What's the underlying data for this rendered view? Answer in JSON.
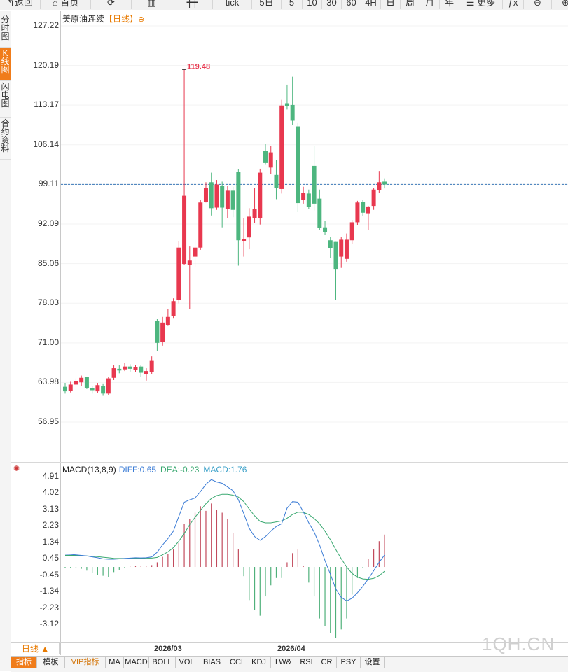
{
  "toolbar": {
    "items": [
      {
        "label": "↰返回",
        "name": "back-button"
      },
      {
        "label": "⌂ 首页",
        "name": "home-button"
      },
      {
        "label": "⟳",
        "name": "refresh-button"
      },
      {
        "label": "▥",
        "name": "bar-chart-button"
      },
      {
        "label": "┿┿",
        "name": "candle-style-button"
      },
      {
        "label": "tick",
        "name": "tick-button"
      },
      {
        "label": "5日",
        "name": "period-5day-button"
      },
      {
        "label": "5",
        "name": "period-5min-button"
      },
      {
        "label": "10",
        "name": "period-10min-button"
      },
      {
        "label": "30",
        "name": "period-30min-button"
      },
      {
        "label": "60",
        "name": "period-60min-button"
      },
      {
        "label": "4H",
        "name": "period-4h-button"
      },
      {
        "label": "日",
        "name": "period-day-button"
      },
      {
        "label": "周",
        "name": "period-week-button"
      },
      {
        "label": "月",
        "name": "period-month-button"
      },
      {
        "label": "年",
        "name": "period-year-button"
      },
      {
        "label": "☰ 更多",
        "name": "more-button"
      },
      {
        "label": "ƒx",
        "name": "formula-button"
      },
      {
        "label": "⊖",
        "name": "zoom-out-button"
      },
      {
        "label": "⊕",
        "name": "zoom-in-button"
      }
    ]
  },
  "side_tabs": [
    {
      "label": "分时图",
      "active": false
    },
    {
      "label": "K线图",
      "active": true
    },
    {
      "label": "闪电图",
      "active": false
    },
    {
      "label": "合约资料",
      "active": false
    }
  ],
  "header": {
    "instrument": "美原油连续",
    "period": "【日线】",
    "settings_icon": "⊕"
  },
  "price_axis": [
    "127.22",
    "120.19",
    "113.17",
    "106.14",
    "99.11",
    "92.09",
    "85.06",
    "78.03",
    "71.00",
    "63.98",
    "56.95"
  ],
  "macd": {
    "title": "MACD(13,8,9)",
    "diff": "DIFF:0.65",
    "dea": "DEA:-0.23",
    "macd": "MACD:1.76",
    "axis": [
      "4.91",
      "4.02",
      "3.13",
      "2.23",
      "1.34",
      "0.45",
      "-0.45",
      "-1.34",
      "-2.23",
      "-3.12"
    ]
  },
  "date_axis": [
    "2026/03",
    "2026/04"
  ],
  "period_button": "日线 ▲",
  "watermark": "1QH.CN",
  "bottom_tabs": [
    {
      "label": "指标",
      "active": true
    },
    {
      "label": "模板"
    },
    {
      "label": "VIP指标",
      "vip": true
    },
    {
      "label": "MA"
    },
    {
      "label": "MACD"
    },
    {
      "label": "BOLL"
    },
    {
      "label": "VOL"
    },
    {
      "label": "BIAS"
    },
    {
      "label": "CCI"
    },
    {
      "label": "KDJ"
    },
    {
      "label": "LW&"
    },
    {
      "label": "RSI"
    },
    {
      "label": "CR"
    },
    {
      "label": "PSY"
    },
    {
      "label": "设置"
    }
  ],
  "colors": {
    "up": "#e8384f",
    "down": "#4db67f",
    "diff": "#3a7bd5",
    "dea": "#39a870",
    "accent": "#f07c1a"
  },
  "chart_data": {
    "type": "candlestick",
    "title": "美原油连续【日线】",
    "y_range": [
      56.95,
      127.22
    ],
    "high_marker": "119.48",
    "current_price": 99.11,
    "candles": [
      [
        63.2,
        62.4,
        63.9,
        62.0
      ],
      [
        62.5,
        63.6,
        64.1,
        62.2
      ],
      [
        63.6,
        64.2,
        64.7,
        63.5
      ],
      [
        64.0,
        64.8,
        65.2,
        63.3
      ],
      [
        64.9,
        63.0,
        65.0,
        62.8
      ],
      [
        63.0,
        62.6,
        63.4,
        62.0
      ],
      [
        62.4,
        63.5,
        63.9,
        62.1
      ],
      [
        63.4,
        62.0,
        63.8,
        61.6
      ],
      [
        62.0,
        64.7,
        65.0,
        61.7
      ],
      [
        64.8,
        66.5,
        67.0,
        64.4
      ],
      [
        66.4,
        66.1,
        67.0,
        65.6
      ],
      [
        66.3,
        66.8,
        67.4,
        66.0
      ],
      [
        66.8,
        66.4,
        67.2,
        65.9
      ],
      [
        66.2,
        66.7,
        67.1,
        65.8
      ],
      [
        66.8,
        65.7,
        67.0,
        65.0
      ],
      [
        65.5,
        66.0,
        66.5,
        64.3
      ],
      [
        65.8,
        67.8,
        68.6,
        65.4
      ],
      [
        74.9,
        71.0,
        75.2,
        69.5
      ],
      [
        71.2,
        74.6,
        75.6,
        70.5
      ],
      [
        74.2,
        75.6,
        77.0,
        74.0
      ],
      [
        75.8,
        78.4,
        78.9,
        75.3
      ],
      [
        78.6,
        87.9,
        89.0,
        78.0
      ],
      [
        85.0,
        97.1,
        119.48,
        84.8
      ],
      [
        84.8,
        85.6,
        88.1,
        77.0
      ],
      [
        86.3,
        87.9,
        89.3,
        84.5
      ],
      [
        87.9,
        95.9,
        96.4,
        87.5
      ],
      [
        96.0,
        98.5,
        99.5,
        95.9
      ],
      [
        99.5,
        94.9,
        101.2,
        93.6
      ],
      [
        95.0,
        99.1,
        99.9,
        94.6
      ],
      [
        98.9,
        95.0,
        99.6,
        91.5
      ],
      [
        94.8,
        98.0,
        98.9,
        93.2
      ],
      [
        98.0,
        94.6,
        98.7,
        93.3
      ],
      [
        101.3,
        89.2,
        101.9,
        84.7
      ],
      [
        89.1,
        89.4,
        93.1,
        86.3
      ],
      [
        89.7,
        93.4,
        94.9,
        87.6
      ],
      [
        93.1,
        94.7,
        98.5,
        92.3
      ],
      [
        93.1,
        101.2,
        101.9,
        92.0
      ],
      [
        105.1,
        102.9,
        106.3,
        102.7
      ],
      [
        102.1,
        104.8,
        105.9,
        100.9
      ],
      [
        100.8,
        98.5,
        103.5,
        96.5
      ],
      [
        98.3,
        113.1,
        114.1,
        97.5
      ],
      [
        113.5,
        113.0,
        116.8,
        112.4
      ],
      [
        113.2,
        110.4,
        118.2,
        109.7
      ],
      [
        109.4,
        95.8,
        110.1,
        94.2
      ],
      [
        96.4,
        97.6,
        98.7,
        95.7
      ],
      [
        97.5,
        95.1,
        98.2,
        94.7
      ],
      [
        102.4,
        95.7,
        106.0,
        94.5
      ],
      [
        96.6,
        91.4,
        98.2,
        91.0
      ],
      [
        91.5,
        90.6,
        92.6,
        90.1
      ],
      [
        89.2,
        87.8,
        89.8,
        86.1
      ],
      [
        88.9,
        84.0,
        88.9,
        78.6
      ],
      [
        86.3,
        89.3,
        89.8,
        84.3
      ],
      [
        85.9,
        89.3,
        90.4,
        85.4
      ],
      [
        89.2,
        92.4,
        92.8,
        88.6
      ],
      [
        92.4,
        95.9,
        96.2,
        91.9
      ],
      [
        96.0,
        94.1,
        96.4,
        93.5
      ],
      [
        94.0,
        95.2,
        95.3,
        91.0
      ],
      [
        95.3,
        98.2,
        98.5,
        94.6
      ],
      [
        98.1,
        99.5,
        101.5,
        97.6
      ],
      [
        99.6,
        99.1,
        100.2,
        98.4
      ]
    ],
    "macd": {
      "y_range": [
        -3.12,
        4.91
      ],
      "diff": [
        0.69,
        0.68,
        0.66,
        0.63,
        0.6,
        0.55,
        0.5,
        0.44,
        0.42,
        0.42,
        0.44,
        0.46,
        0.48,
        0.5,
        0.49,
        0.5,
        0.55,
        0.8,
        1.2,
        1.55,
        1.95,
        2.75,
        3.52,
        3.65,
        3.75,
        4.1,
        4.5,
        4.75,
        4.62,
        4.55,
        4.35,
        4.15,
        3.65,
        2.9,
        2.1,
        1.65,
        1.45,
        1.65,
        1.95,
        2.2,
        2.35,
        3.2,
        3.55,
        3.52,
        3.0,
        2.4,
        1.9,
        1.2,
        0.35,
        -0.4,
        -1.2,
        -1.65,
        -1.85,
        -1.7,
        -1.4,
        -1.05,
        -0.65,
        -0.2,
        0.25,
        0.65
      ],
      "dea": [
        0.63,
        0.63,
        0.63,
        0.62,
        0.6,
        0.58,
        0.56,
        0.53,
        0.5,
        0.47,
        0.46,
        0.46,
        0.46,
        0.47,
        0.47,
        0.48,
        0.48,
        0.52,
        0.66,
        0.82,
        1.05,
        1.4,
        1.82,
        2.3,
        2.7,
        3.08,
        3.44,
        3.72,
        3.88,
        3.95,
        3.95,
        3.9,
        3.8,
        3.55,
        3.15,
        2.78,
        2.48,
        2.4,
        2.4,
        2.45,
        2.5,
        2.65,
        2.85,
        2.98,
        2.97,
        2.85,
        2.63,
        2.35,
        1.95,
        1.48,
        0.95,
        0.45,
        0.0,
        -0.35,
        -0.55,
        -0.65,
        -0.67,
        -0.62,
        -0.48,
        -0.23
      ],
      "hist": [
        -0.06,
        -0.05,
        -0.06,
        -0.1,
        -0.2,
        -0.31,
        -0.42,
        -0.48,
        -0.55,
        -0.28,
        -0.15,
        -0.05,
        0.02,
        0.05,
        0.03,
        0.02,
        0.1,
        0.25,
        0.55,
        0.7,
        0.95,
        1.3,
        2.35,
        2.6,
        2.95,
        3.3,
        3.05,
        3.45,
        3.1,
        2.95,
        2.6,
        1.85,
        0.95,
        -0.5,
        -1.8,
        -2.35,
        -2.65,
        -1.6,
        -1.0,
        -0.6,
        -0.6,
        0.25,
        0.75,
        0.95,
        0.05,
        -0.85,
        -1.6,
        -2.8,
        -3.2,
        -3.6,
        -3.85,
        -3.4,
        -2.8,
        -1.5,
        -0.6,
        -0.05,
        0.45,
        0.95,
        1.4,
        1.76
      ]
    }
  }
}
